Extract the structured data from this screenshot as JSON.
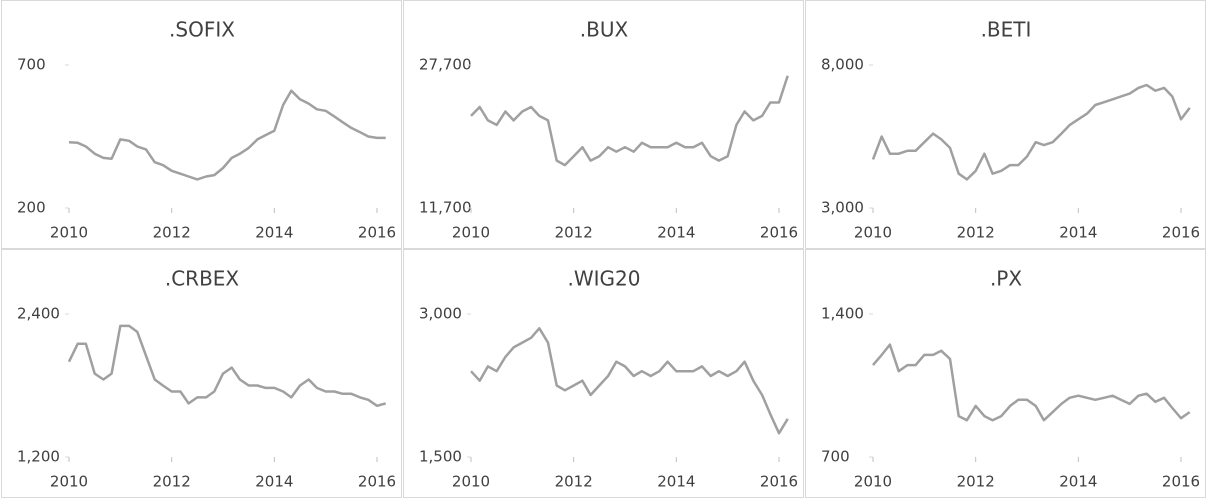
{
  "chart_data": [
    {
      "type": "line",
      "title": ".SOFIX",
      "color": "#a0a0a0",
      "x": [
        2010,
        2010.17,
        2010.33,
        2010.5,
        2010.67,
        2010.83,
        2011,
        2011.17,
        2011.33,
        2011.5,
        2011.67,
        2011.83,
        2012,
        2012.17,
        2012.33,
        2012.5,
        2012.67,
        2012.83,
        2013,
        2013.17,
        2013.33,
        2013.5,
        2013.67,
        2013.83,
        2014,
        2014.17,
        2014.33,
        2014.5,
        2014.67,
        2014.83,
        2015,
        2015.17,
        2015.33,
        2015.5,
        2015.67,
        2015.83,
        2016,
        2016.17
      ],
      "values": [
        430,
        428,
        415,
        390,
        375,
        372,
        440,
        435,
        415,
        405,
        360,
        350,
        330,
        320,
        310,
        300,
        310,
        315,
        340,
        375,
        390,
        410,
        440,
        455,
        470,
        560,
        610,
        580,
        565,
        545,
        540,
        520,
        500,
        480,
        465,
        450,
        445,
        445
      ],
      "xlim": [
        2010,
        2016.5
      ],
      "xticks": [
        2010,
        2012,
        2014,
        2016
      ],
      "ylim": [
        200,
        700
      ],
      "yticks": [
        200,
        700
      ]
    },
    {
      "type": "line",
      "title": ".BUX",
      "color": "#a0a0a0",
      "x": [
        2010,
        2010.17,
        2010.33,
        2010.5,
        2010.67,
        2010.83,
        2011,
        2011.17,
        2011.33,
        2011.5,
        2011.67,
        2011.83,
        2012,
        2012.17,
        2012.33,
        2012.5,
        2012.67,
        2012.83,
        2013,
        2013.17,
        2013.33,
        2013.5,
        2013.67,
        2013.83,
        2014,
        2014.17,
        2014.33,
        2014.5,
        2014.67,
        2014.83,
        2015,
        2015.17,
        2015.33,
        2015.5,
        2015.67,
        2015.83,
        2016,
        2016.17
      ],
      "values": [
        22000,
        23000,
        21500,
        21000,
        22500,
        21500,
        22500,
        23000,
        22000,
        21500,
        17000,
        16500,
        17500,
        18500,
        17000,
        17500,
        18500,
        18000,
        18500,
        18000,
        19000,
        18500,
        18500,
        18500,
        19000,
        18500,
        18500,
        19000,
        17500,
        17000,
        17500,
        21000,
        22500,
        21500,
        22000,
        23500,
        23500,
        26500
      ],
      "xlim": [
        2010,
        2016.5
      ],
      "xticks": [
        2010,
        2012,
        2014,
        2016
      ],
      "ylim": [
        11700,
        27700
      ],
      "yticks": [
        {
          "value": 11700,
          "label": "11,700"
        },
        {
          "value": 27700,
          "label": "27,700"
        }
      ]
    },
    {
      "type": "line",
      "title": ".BETI",
      "color": "#a0a0a0",
      "x": [
        2010,
        2010.17,
        2010.33,
        2010.5,
        2010.67,
        2010.83,
        2011,
        2011.17,
        2011.33,
        2011.5,
        2011.67,
        2011.83,
        2012,
        2012.17,
        2012.33,
        2012.5,
        2012.67,
        2012.83,
        2013,
        2013.17,
        2013.33,
        2013.5,
        2013.67,
        2013.83,
        2014,
        2014.17,
        2014.33,
        2014.5,
        2014.67,
        2014.83,
        2015,
        2015.17,
        2015.33,
        2015.5,
        2015.67,
        2015.83,
        2016,
        2016.17
      ],
      "values": [
        4700,
        5500,
        4900,
        4900,
        5000,
        5000,
        5300,
        5600,
        5400,
        5100,
        4200,
        4000,
        4300,
        4900,
        4200,
        4300,
        4500,
        4500,
        4800,
        5300,
        5200,
        5300,
        5600,
        5900,
        6100,
        6300,
        6600,
        6700,
        6800,
        6900,
        7000,
        7200,
        7300,
        7100,
        7200,
        6900,
        6100,
        6500
      ],
      "xlim": [
        2010,
        2016.5
      ],
      "xticks": [
        2010,
        2012,
        2014,
        2016
      ],
      "ylim": [
        3000,
        8000
      ],
      "yticks": [
        {
          "value": 3000,
          "label": "3,000"
        },
        {
          "value": 8000,
          "label": "8,000"
        }
      ]
    },
    {
      "type": "line",
      "title": ".CRBEX",
      "color": "#a0a0a0",
      "x": [
        2010,
        2010.17,
        2010.33,
        2010.5,
        2010.67,
        2010.83,
        2011,
        2011.17,
        2011.33,
        2011.5,
        2011.67,
        2011.83,
        2012,
        2012.17,
        2012.33,
        2012.5,
        2012.67,
        2012.83,
        2013,
        2013.17,
        2013.33,
        2013.5,
        2013.67,
        2013.83,
        2014,
        2014.17,
        2014.33,
        2014.5,
        2014.67,
        2014.83,
        2015,
        2015.17,
        2015.33,
        2015.5,
        2015.67,
        2015.83,
        2016,
        2016.17
      ],
      "values": [
        2000,
        2150,
        2150,
        1900,
        1850,
        1900,
        2300,
        2300,
        2250,
        2050,
        1850,
        1800,
        1750,
        1750,
        1650,
        1700,
        1700,
        1750,
        1900,
        1950,
        1850,
        1800,
        1800,
        1780,
        1780,
        1750,
        1700,
        1800,
        1850,
        1780,
        1750,
        1750,
        1730,
        1730,
        1700,
        1680,
        1630,
        1650
      ],
      "xlim": [
        2010,
        2016.5
      ],
      "xticks": [
        2010,
        2012,
        2014,
        2016
      ],
      "ylim": [
        1200,
        2400
      ],
      "yticks": [
        {
          "value": 1200,
          "label": "1,200"
        },
        {
          "value": 2400,
          "label": "2,400"
        }
      ]
    },
    {
      "type": "line",
      "title": ".WIG20",
      "color": "#a0a0a0",
      "x": [
        2010,
        2010.17,
        2010.33,
        2010.5,
        2010.67,
        2010.83,
        2011,
        2011.17,
        2011.33,
        2011.5,
        2011.67,
        2011.83,
        2012,
        2012.17,
        2012.33,
        2012.5,
        2012.67,
        2012.83,
        2013,
        2013.17,
        2013.33,
        2013.5,
        2013.67,
        2013.83,
        2014,
        2014.17,
        2014.33,
        2014.5,
        2014.67,
        2014.83,
        2015,
        2015.17,
        2015.33,
        2015.5,
        2015.67,
        2015.83,
        2016,
        2016.17
      ],
      "values": [
        2400,
        2300,
        2450,
        2400,
        2550,
        2650,
        2700,
        2750,
        2850,
        2700,
        2250,
        2200,
        2250,
        2300,
        2150,
        2250,
        2350,
        2500,
        2450,
        2350,
        2400,
        2350,
        2400,
        2500,
        2400,
        2400,
        2400,
        2450,
        2350,
        2400,
        2350,
        2400,
        2500,
        2300,
        2150,
        1950,
        1750,
        1900
      ],
      "xlim": [
        2010,
        2016.5
      ],
      "xticks": [
        2010,
        2012,
        2014,
        2016
      ],
      "ylim": [
        1500,
        3000
      ],
      "yticks": [
        {
          "value": 1500,
          "label": "1,500"
        },
        {
          "value": 3000,
          "label": "3,000"
        }
      ]
    },
    {
      "type": "line",
      "title": ".PX",
      "color": "#a0a0a0",
      "x": [
        2010,
        2010.17,
        2010.33,
        2010.5,
        2010.67,
        2010.83,
        2011,
        2011.17,
        2011.33,
        2011.5,
        2011.67,
        2011.83,
        2012,
        2012.17,
        2012.33,
        2012.5,
        2012.67,
        2012.83,
        2013,
        2013.17,
        2013.33,
        2013.5,
        2013.67,
        2013.83,
        2014,
        2014.17,
        2014.33,
        2014.5,
        2014.67,
        2014.83,
        2015,
        2015.17,
        2015.33,
        2015.5,
        2015.67,
        2015.83,
        2016,
        2016.17
      ],
      "values": [
        1150,
        1200,
        1250,
        1120,
        1150,
        1150,
        1200,
        1200,
        1220,
        1180,
        900,
        880,
        950,
        900,
        880,
        900,
        950,
        980,
        980,
        950,
        880,
        920,
        960,
        990,
        1000,
        990,
        980,
        990,
        1000,
        980,
        960,
        1000,
        1010,
        970,
        990,
        940,
        890,
        920
      ],
      "xlim": [
        2010,
        2016.5
      ],
      "xticks": [
        2010,
        2012,
        2014,
        2016
      ],
      "ylim": [
        700,
        1400
      ],
      "yticks": [
        {
          "value": 700,
          "label": "700"
        },
        {
          "value": 1400,
          "label": "1,400"
        }
      ]
    }
  ]
}
